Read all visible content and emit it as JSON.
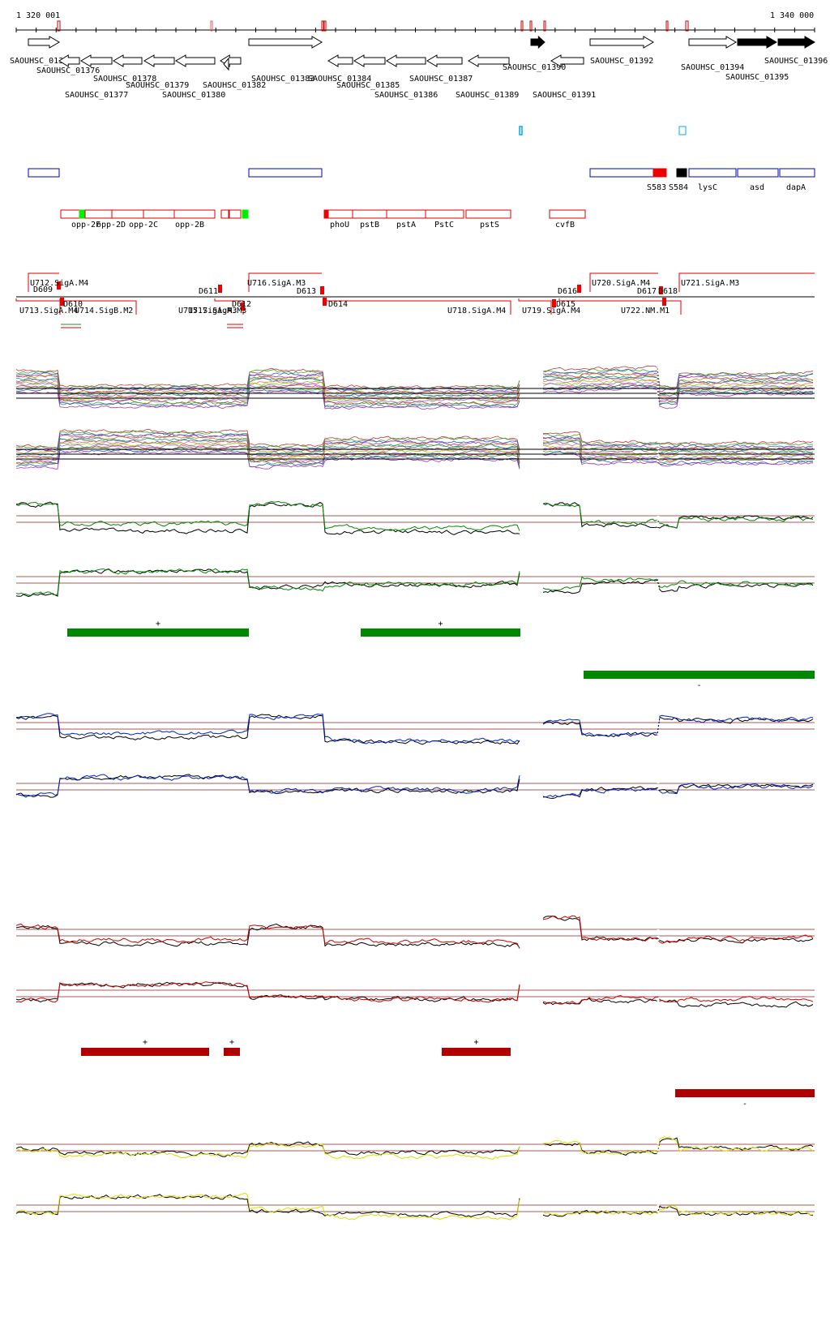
{
  "axis": {
    "start_label": "1 320 001",
    "end_label": "1 340 000"
  },
  "colors": {
    "gene": "#000000",
    "operon_blue": "#0000cc",
    "red": "#e00000",
    "green_fill": "#00ee00",
    "cyan": "#00aaff",
    "green_track": "#008800",
    "blue_track": "#0022cc",
    "red_track": "#cc0000",
    "yellow_track": "#dddd00",
    "thresh": "#8b2020",
    "green_bar": "#008800",
    "red_bar": "#b00000"
  },
  "genes": [
    {
      "label": "SAOUHSC_01375",
      "dir": "+",
      "filled": false
    },
    {
      "label": "SAOUHSC_01376",
      "dir": "-",
      "filled": false
    },
    {
      "label": "SAOUHSC_01377",
      "dir": "-",
      "filled": false
    },
    {
      "label": "SAOUHSC_01378",
      "dir": "-",
      "filled": false
    },
    {
      "label": "SAOUHSC_01379",
      "dir": "-",
      "filled": false
    },
    {
      "label": "SAOUHSC_01380",
      "dir": "-",
      "filled": false
    },
    {
      "label": "SAOUHSC_01382",
      "dir": "-",
      "filled": false
    },
    {
      "label": "SAOUHSC_01383",
      "dir": "+",
      "filled": false
    },
    {
      "label": "SAOUHSC_01384",
      "dir": "-",
      "filled": false
    },
    {
      "label": "SAOUHSC_01385",
      "dir": "-",
      "filled": false
    },
    {
      "label": "SAOUHSC_01386",
      "dir": "-",
      "filled": false
    },
    {
      "label": "SAOUHSC_01387",
      "dir": "-",
      "filled": false
    },
    {
      "label": "SAOUHSC_01389",
      "dir": "-",
      "filled": false
    },
    {
      "label": "SAOUHSC_01390",
      "dir": "+",
      "filled": true
    },
    {
      "label": "SAOUHSC_01391",
      "dir": "-",
      "filled": false
    },
    {
      "label": "SAOUHSC_01392",
      "dir": "+",
      "filled": false
    },
    {
      "label": "SAOUHSC_01394",
      "dir": "+",
      "filled": false
    },
    {
      "label": "SAOUHSC_01395",
      "dir": "+",
      "filled": true
    },
    {
      "label": "SAOUHSC_01396",
      "dir": "+",
      "filled": true
    }
  ],
  "operon_labels": [
    "S583",
    "S584",
    "lysC",
    "asd",
    "dapA"
  ],
  "regulon_labels": [
    "opp-2F",
    "opp-2D",
    "opp-2C",
    "opp-2B",
    "phoU",
    "pstB",
    "pstA",
    "PstC",
    "pstS",
    "cvfB"
  ],
  "tu_labels_top": [
    "U712.SigA.M4",
    "U716.SigA.M3",
    "U720.SigA.M4",
    "U721.SigA.M3"
  ],
  "tu_labels_bottom": [
    "U713.SigA.M4",
    "U714.SigB.M2",
    "U715.SigA.M3",
    "U717.SigA.M3",
    "U718.SigA.M4",
    "U719.SigA.M4",
    "U722.NM.M1"
  ],
  "d_labels": [
    "D609",
    "D610",
    "D611",
    "D612",
    "D613",
    "D614",
    "D615",
    "D616",
    "D617",
    "D618"
  ],
  "strand_marks": {
    "plus": "+",
    "minus": "-"
  }
}
